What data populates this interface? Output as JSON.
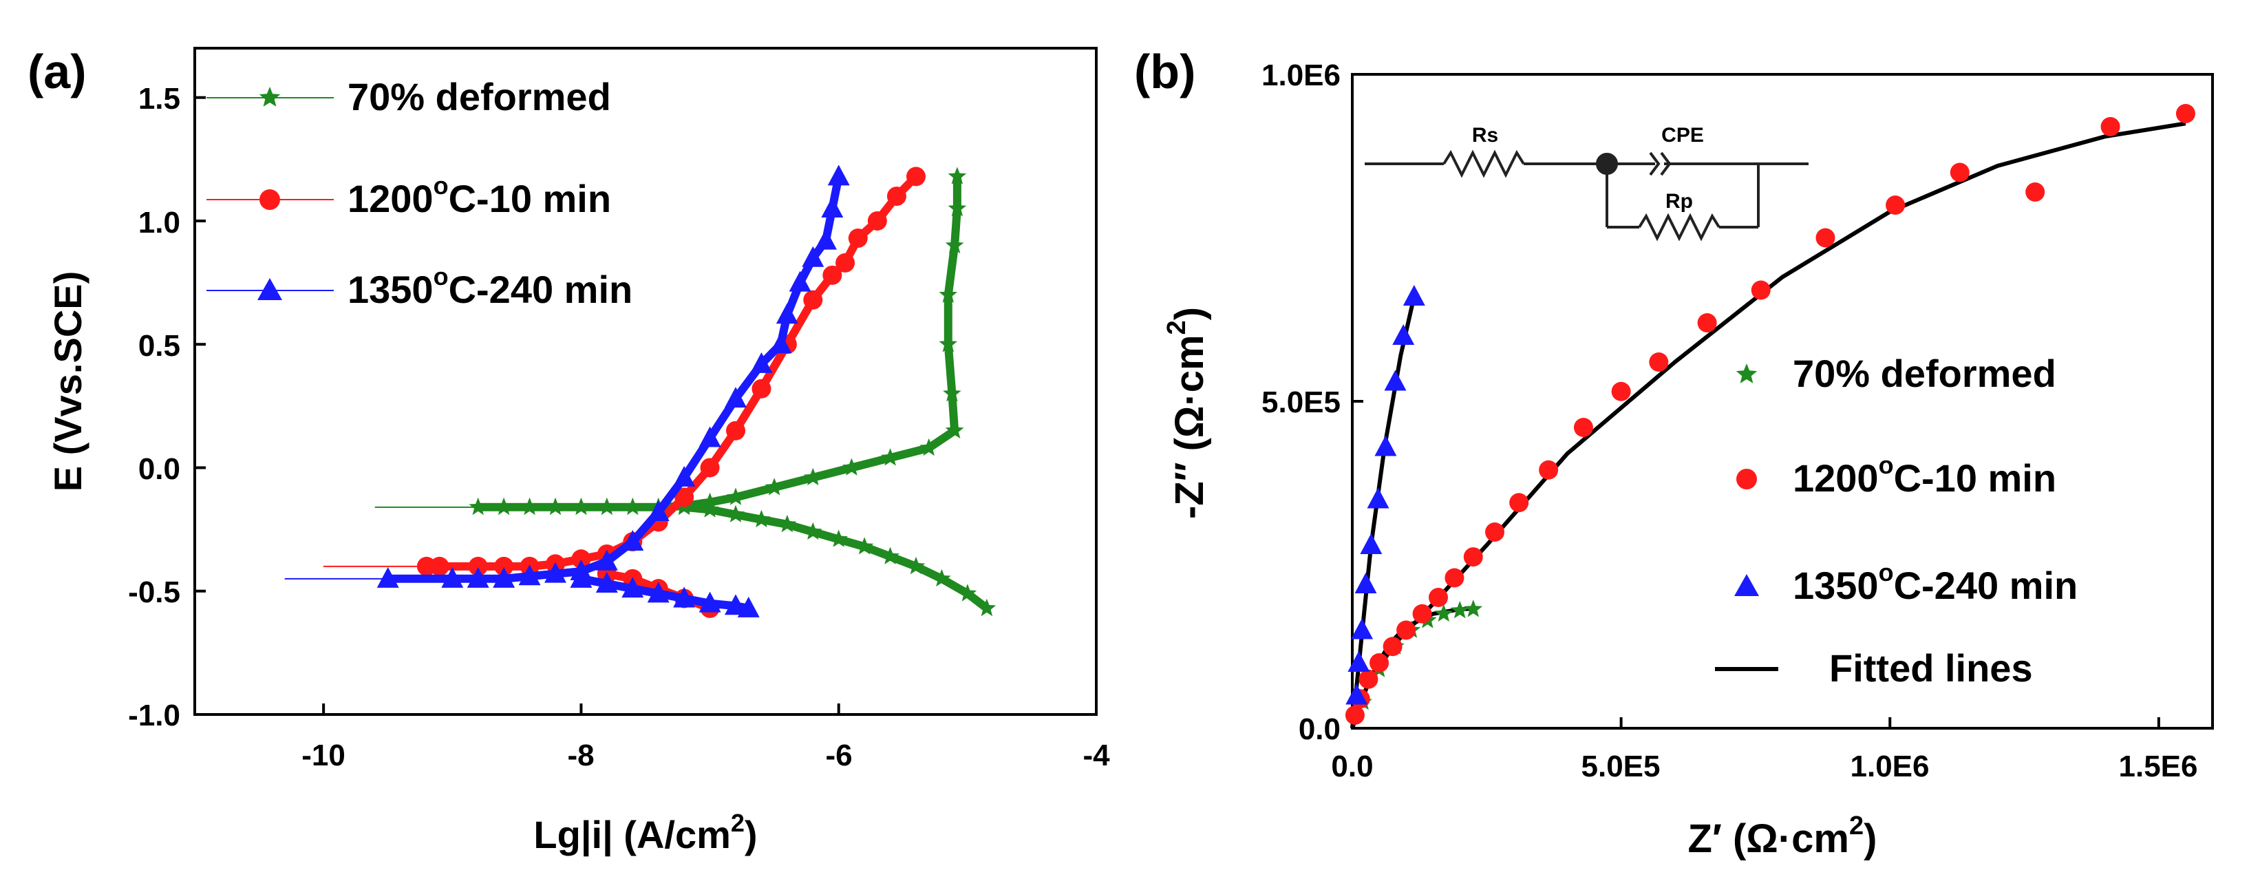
{
  "colors": {
    "deformed": "#1f8a1f",
    "c1200": "#ff1a1a",
    "c1350": "#1a1aff",
    "fit": "#000000",
    "axis": "#000000"
  },
  "chart_data": [
    {
      "id": "polarization",
      "panel_label": "(a)",
      "type": "line",
      "title": "",
      "xlabel": "Lg|i| (A/cm",
      "xlabel_sup": "2",
      "xlabel_end": ")",
      "ylabel": "E (Vvs.SCE)",
      "xlim": [
        -11,
        -4
      ],
      "ylim": [
        -1.0,
        1.7
      ],
      "xticks": [
        -10,
        -8,
        -6,
        -4
      ],
      "xtick_labels": [
        "-10",
        "-8",
        "-6",
        "-4"
      ],
      "yticks": [
        -1.0,
        -0.5,
        0.0,
        0.5,
        1.0,
        1.5
      ],
      "ytick_labels": [
        "-1.0",
        "-0.5",
        "0.0",
        "0.5",
        "1.0",
        "1.5"
      ],
      "legend_position": "top-left",
      "series": [
        {
          "key": "deformed",
          "name": "70% deformed",
          "marker": "star",
          "legend_line": true,
          "x": [
            -8.8,
            -8.6,
            -8.4,
            -8.2,
            -8.0,
            -7.8,
            -7.6,
            -7.4,
            -7.2,
            -7.0,
            -6.8,
            -6.5,
            -6.2,
            -5.9,
            -5.6,
            -5.3,
            -5.1,
            -5.12,
            -5.15,
            -5.15,
            -5.1,
            -5.08,
            -5.08
          ],
          "y": [
            -0.16,
            -0.16,
            -0.16,
            -0.16,
            -0.16,
            -0.16,
            -0.16,
            -0.16,
            -0.155,
            -0.14,
            -0.12,
            -0.08,
            -0.04,
            0.0,
            0.04,
            0.08,
            0.15,
            0.3,
            0.5,
            0.7,
            0.9,
            1.05,
            1.18
          ],
          "x2": [
            -7.2,
            -7.0,
            -6.8,
            -6.6,
            -6.4,
            -6.2,
            -6.0,
            -5.8,
            -5.6,
            -5.4,
            -5.2,
            -5.0,
            -4.85
          ],
          "y2": [
            -0.16,
            -0.17,
            -0.19,
            -0.21,
            -0.23,
            -0.26,
            -0.29,
            -0.32,
            -0.36,
            -0.4,
            -0.45,
            -0.51,
            -0.57
          ]
        },
        {
          "key": "c1200",
          "name": "1200°C-10 min",
          "name_main": "1200",
          "name_sup": "o",
          "name_end": "C-10 min",
          "marker": "circle",
          "legend_line": true,
          "x": [
            -9.2,
            -9.1,
            -8.8,
            -8.6,
            -8.4,
            -8.2,
            -8.0,
            -7.8,
            -7.6,
            -7.4,
            -7.2,
            -7.0,
            -6.8,
            -6.6,
            -6.4,
            -6.2,
            -6.05,
            -5.95,
            -5.85,
            -5.7,
            -5.55,
            -5.4
          ],
          "y": [
            -0.4,
            -0.4,
            -0.4,
            -0.4,
            -0.4,
            -0.39,
            -0.37,
            -0.35,
            -0.3,
            -0.22,
            -0.12,
            0.0,
            0.15,
            0.32,
            0.5,
            0.68,
            0.78,
            0.83,
            0.93,
            1.0,
            1.1,
            1.18
          ],
          "x2": [
            -7.8,
            -7.6,
            -7.4,
            -7.2,
            -7.0
          ],
          "y2": [
            -0.43,
            -0.45,
            -0.49,
            -0.53,
            -0.57
          ]
        },
        {
          "key": "c1350",
          "name": "1350°C-240 min",
          "name_main": "1350",
          "name_sup": "o",
          "name_end": "C-240 min",
          "marker": "triangle",
          "legend_line": true,
          "x": [
            -9.5,
            -9.0,
            -8.8,
            -8.6,
            -8.4,
            -8.2,
            -8.0,
            -7.8,
            -7.6,
            -7.4,
            -7.2,
            -7.0,
            -6.8,
            -6.6,
            -6.45,
            -6.4,
            -6.3,
            -6.2,
            -6.1,
            -6.05,
            -6.0
          ],
          "y": [
            -0.45,
            -0.45,
            -0.45,
            -0.45,
            -0.44,
            -0.43,
            -0.42,
            -0.38,
            -0.3,
            -0.18,
            -0.04,
            0.12,
            0.28,
            0.42,
            0.5,
            0.62,
            0.75,
            0.85,
            0.92,
            1.05,
            1.18
          ],
          "x2": [
            -8.0,
            -7.8,
            -7.6,
            -7.4,
            -7.2,
            -7.0,
            -6.8,
            -6.7
          ],
          "y2": [
            -0.45,
            -0.47,
            -0.49,
            -0.51,
            -0.53,
            -0.55,
            -0.56,
            -0.57
          ]
        }
      ]
    },
    {
      "id": "nyquist",
      "panel_label": "(b)",
      "type": "scatter",
      "title": "",
      "xlabel": "Z′ (Ω·cm",
      "xlabel_sup": "2",
      "xlabel_end": ")",
      "ylabel": "-Z″ (Ω·cm",
      "ylabel_sup": "2",
      "ylabel_end": ")",
      "xlim": [
        0,
        1600000
      ],
      "ylim": [
        0,
        1000000
      ],
      "xticks": [
        0,
        500000,
        1000000,
        1500000
      ],
      "xtick_labels": [
        "0.0",
        "5.0E5",
        "1.0E6",
        "1.5E6"
      ],
      "yticks": [
        0,
        500000,
        1000000
      ],
      "ytick_labels": [
        "0.0",
        "5.0E5",
        "1.0E6"
      ],
      "legend_position": "center-right",
      "series": [
        {
          "key": "deformed",
          "name": "70% deformed",
          "marker": "star",
          "x": [
            20000,
            50000,
            80000,
            110000,
            140000,
            170000,
            200000,
            225000
          ],
          "y": [
            40000,
            90000,
            125000,
            150000,
            165000,
            175000,
            180000,
            182000
          ]
        },
        {
          "key": "c1200",
          "name": "1200°C-10 min",
          "name_main": "1200",
          "name_sup": "o",
          "name_end": "C-10 min",
          "marker": "circle",
          "x": [
            5000,
            15000,
            30000,
            50000,
            75000,
            100000,
            130000,
            160000,
            190000,
            225000,
            265000,
            310000,
            365000,
            430000,
            500000,
            570000,
            660000,
            760000,
            880000,
            1010000,
            1130000,
            1270000,
            1410000,
            1550000
          ],
          "y": [
            20000,
            45000,
            75000,
            100000,
            125000,
            150000,
            175000,
            200000,
            230000,
            262000,
            300000,
            345000,
            395000,
            460000,
            515000,
            560000,
            620000,
            670000,
            750000,
            800000,
            850000,
            820000,
            920000,
            940000
          ]
        },
        {
          "key": "c1350",
          "name": "1350°C-240 min",
          "name_main": "1350",
          "name_sup": "o",
          "name_end": "C-240 min",
          "marker": "triangle",
          "x": [
            8000,
            12000,
            18000,
            25000,
            35000,
            48000,
            62000,
            80000,
            95000,
            115000
          ],
          "y": [
            50000,
            100000,
            150000,
            220000,
            280000,
            350000,
            430000,
            530000,
            600000,
            660000
          ]
        },
        {
          "key": "fit",
          "name": "Fitted lines",
          "marker": "line",
          "fits": [
            {
              "x": [
                0,
                30000,
                80000,
                150000,
                250000,
                400000,
                600000,
                800000,
                1000000,
                1200000,
                1400000,
                1550000
              ],
              "y": [
                0,
                70000,
                130000,
                190000,
                280000,
                420000,
                560000,
                690000,
                790000,
                860000,
                905000,
                925000
              ]
            },
            {
              "x": [
                0,
                20000,
                45000,
                70000,
                100000,
                150000,
                200000,
                225000
              ],
              "y": [
                0,
                50000,
                95000,
                130000,
                155000,
                175000,
                182000,
                183000
              ]
            },
            {
              "x": [
                0,
                15000,
                35000,
                60000,
                90000,
                115000
              ],
              "y": [
                0,
                120000,
                280000,
                430000,
                570000,
                660000
              ]
            }
          ]
        }
      ],
      "circuit": {
        "rs_label": "Rs",
        "cpe_label": "CPE",
        "rp_label": "Rp"
      }
    }
  ]
}
